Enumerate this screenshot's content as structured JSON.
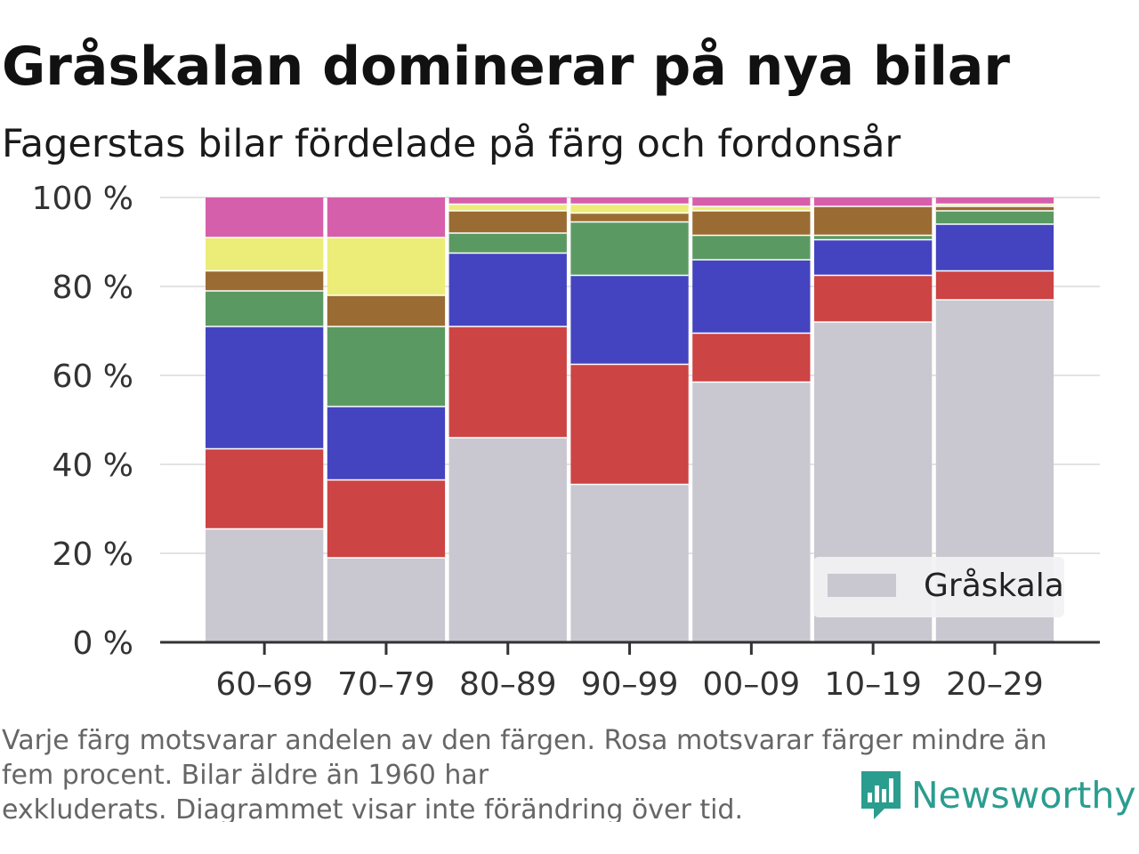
{
  "title": "Gråskalan dominerar på nya bilar",
  "subtitle": "Fagerstas bilar fördelade på färg och fordonsår",
  "footnote": {
    "line1": "Varje färg motsvarar andelen av den färgen. Rosa motsvarar färger mindre än",
    "line2": "fem procent. Bilar äldre än 1960 har",
    "line3": "exkluderats. Diagrammet visar inte förändring över tid."
  },
  "brand": {
    "name": "Newsworthy",
    "color": "#2a9d8f",
    "icon": "bar-chart-speech-bubble-icon"
  },
  "chart_data": {
    "type": "bar",
    "stacked": true,
    "categories": [
      "60–69",
      "70–79",
      "80–89",
      "90–99",
      "00–09",
      "10–19",
      "20–29"
    ],
    "yticks": [
      "0 %",
      "20 %",
      "40 %",
      "60 %",
      "80 %",
      "100 %"
    ],
    "ylim": [
      0,
      100
    ],
    "grid": true,
    "legend": {
      "position": "bottom-right",
      "entries": [
        "Gråskala"
      ]
    },
    "series": [
      {
        "name": "Gråskala",
        "color": "#c9c8d1",
        "values": [
          25.5,
          19,
          46,
          35.5,
          58.5,
          72,
          77
        ]
      },
      {
        "color": "#cc4444",
        "values": [
          18,
          17.5,
          25,
          27,
          11,
          10.5,
          6.5
        ]
      },
      {
        "color": "#4444c0",
        "values": [
          27.5,
          16.5,
          16.5,
          20,
          16.5,
          8,
          10.5
        ]
      },
      {
        "color": "#5a9a62",
        "values": [
          8,
          18,
          4.5,
          12,
          5.5,
          1,
          3
        ]
      },
      {
        "color": "#9a6c33",
        "values": [
          4.5,
          7,
          5,
          2,
          5.5,
          6.5,
          1
        ]
      },
      {
        "color": "#ecec78",
        "values": [
          7.5,
          13,
          1.5,
          2,
          1,
          0,
          0.5
        ]
      },
      {
        "color": "#d65fab",
        "values": [
          9,
          9,
          1.5,
          1.5,
          2,
          2,
          1.5
        ]
      }
    ]
  }
}
